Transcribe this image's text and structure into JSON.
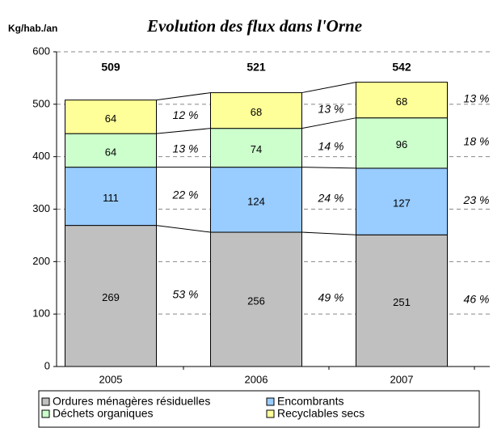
{
  "chart_data": {
    "type": "stacked_bar",
    "title": "Evolution des flux dans l'Orne",
    "y_label": "Kg/hab./an",
    "categories": [
      "2005",
      "2006",
      "2007"
    ],
    "series": [
      {
        "name": "Ordures ménagères résiduelles",
        "color": "#c0c0c0",
        "values": [
          269,
          256,
          251
        ],
        "percent_labels": [
          "53 %",
          "49 %",
          "46 %"
        ]
      },
      {
        "name": "Encombrants",
        "color": "#99ccff",
        "values": [
          111,
          124,
          127
        ],
        "percent_labels": [
          "22 %",
          "24 %",
          "23 %"
        ]
      },
      {
        "name": "Déchets organiques",
        "color": "#ccffcc",
        "values": [
          64,
          74,
          96
        ],
        "percent_labels": [
          "13 %",
          "14 %",
          "18 %"
        ]
      },
      {
        "name": "Recyclables secs",
        "color": "#ffff99",
        "values": [
          64,
          68,
          68
        ],
        "percent_labels": [
          "12 %",
          "13 %",
          "13 %"
        ]
      }
    ],
    "totals": [
      509,
      521,
      542
    ],
    "ylim": [
      0,
      600
    ],
    "yticks": [
      0,
      100,
      200,
      300,
      400,
      500,
      600
    ],
    "grid": true
  }
}
